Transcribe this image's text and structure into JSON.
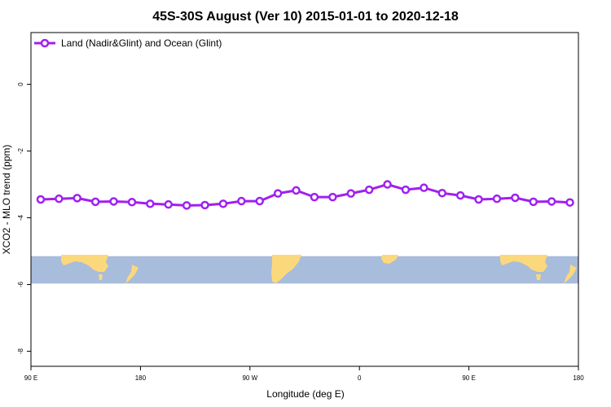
{
  "chart_data": {
    "type": "line",
    "title": "45S-30S August (Ver 10)   2015-01-01 to 2020-12-18",
    "xlabel": "Longitude (deg E)",
    "ylabel": "XCO2 - MLO trend (ppm)",
    "x_ticks": [
      {
        "pos": 90,
        "label": "90 E"
      },
      {
        "pos": 180,
        "label": "180"
      },
      {
        "pos": 270,
        "label": "90 W"
      },
      {
        "pos": 360,
        "label": "0"
      },
      {
        "pos": 450,
        "label": "90 E"
      },
      {
        "pos": 540,
        "label": "180"
      }
    ],
    "xlim": [
      90,
      540
    ],
    "y_ticks": [
      0,
      -2,
      -4,
      -6,
      -8
    ],
    "ylim": [
      -8.45,
      1.55
    ],
    "grid": false,
    "legend_position": "top-left",
    "series": [
      {
        "name": "Land (Nadir&Glint) and Ocean (Glint)",
        "color": "#a020f0",
        "x": [
          98,
          113,
          128,
          143,
          158,
          173,
          188,
          203,
          218,
          233,
          248,
          263,
          278,
          293,
          308,
          323,
          338,
          353,
          368,
          383,
          398,
          413,
          428,
          443,
          458,
          473,
          488,
          503,
          518,
          533
        ],
        "y": [
          -3.45,
          -3.43,
          -3.41,
          -3.52,
          -3.51,
          -3.53,
          -3.58,
          -3.6,
          -3.63,
          -3.62,
          -3.58,
          -3.5,
          -3.5,
          -3.27,
          -3.18,
          -3.38,
          -3.38,
          -3.27,
          -3.16,
          -3.0,
          -3.16,
          -3.1,
          -3.26,
          -3.33,
          -3.45,
          -3.43,
          -3.4,
          -3.52,
          -3.51,
          -3.54
        ]
      }
    ],
    "map_band": {
      "y_range": [
        -5.15,
        -5.97
      ],
      "ocean_color": "#a8bcdc",
      "land_color": "#fcd87c"
    }
  }
}
